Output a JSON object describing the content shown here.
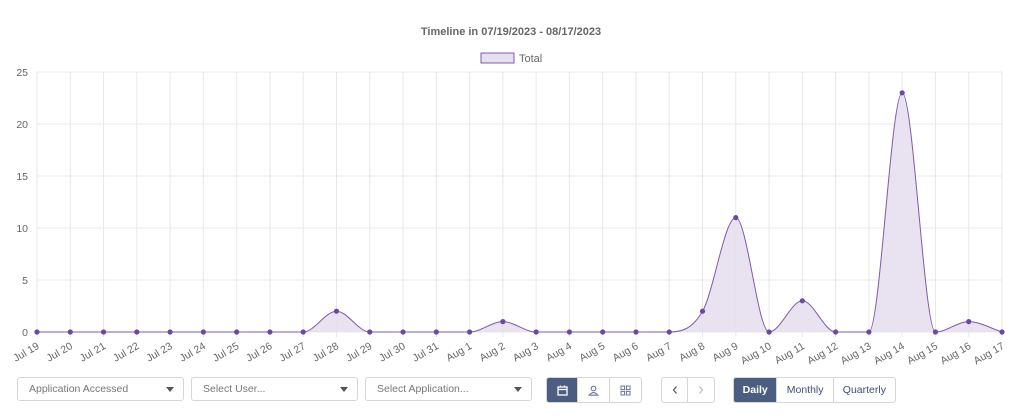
{
  "chart_data": {
    "type": "area",
    "title": "Timeline in 07/19/2023 - 08/17/2023",
    "categories": [
      "Jul 19",
      "Jul 20",
      "Jul 21",
      "Jul 22",
      "Jul 23",
      "Jul 24",
      "Jul 25",
      "Jul 26",
      "Jul 27",
      "Jul 28",
      "Jul 29",
      "Jul 30",
      "Jul 31",
      "Aug 1",
      "Aug 2",
      "Aug 3",
      "Aug 4",
      "Aug 5",
      "Aug 6",
      "Aug 7",
      "Aug 8",
      "Aug 9",
      "Aug 10",
      "Aug 11",
      "Aug 12",
      "Aug 13",
      "Aug 14",
      "Aug 15",
      "Aug 16",
      "Aug 17"
    ],
    "series": [
      {
        "name": "Total",
        "values": [
          0,
          0,
          0,
          0,
          0,
          0,
          0,
          0,
          0,
          2,
          0,
          0,
          0,
          0,
          1,
          0,
          0,
          0,
          0,
          0,
          2,
          11,
          0,
          3,
          0,
          0,
          23,
          0,
          1,
          0
        ]
      }
    ],
    "yticks": [
      0,
      5,
      10,
      15,
      20,
      25
    ],
    "ylim": [
      0,
      25
    ],
    "grid": true,
    "legend": "top-center",
    "colors": {
      "line": "#7e5bab",
      "fill": "#e6dff0",
      "point": "#6c48a0"
    }
  },
  "controls": {
    "report_select": "Application Accessed",
    "user_select_placeholder": "Select User...",
    "app_select_placeholder": "Select Application...",
    "view_icons": [
      "calendar-icon",
      "user-icon",
      "grid-icon"
    ],
    "nav_icons": [
      "chevron-left-icon",
      "chevron-right-icon"
    ],
    "periods": [
      "Daily",
      "Monthly",
      "Quarterly"
    ],
    "active_period": "Daily"
  }
}
